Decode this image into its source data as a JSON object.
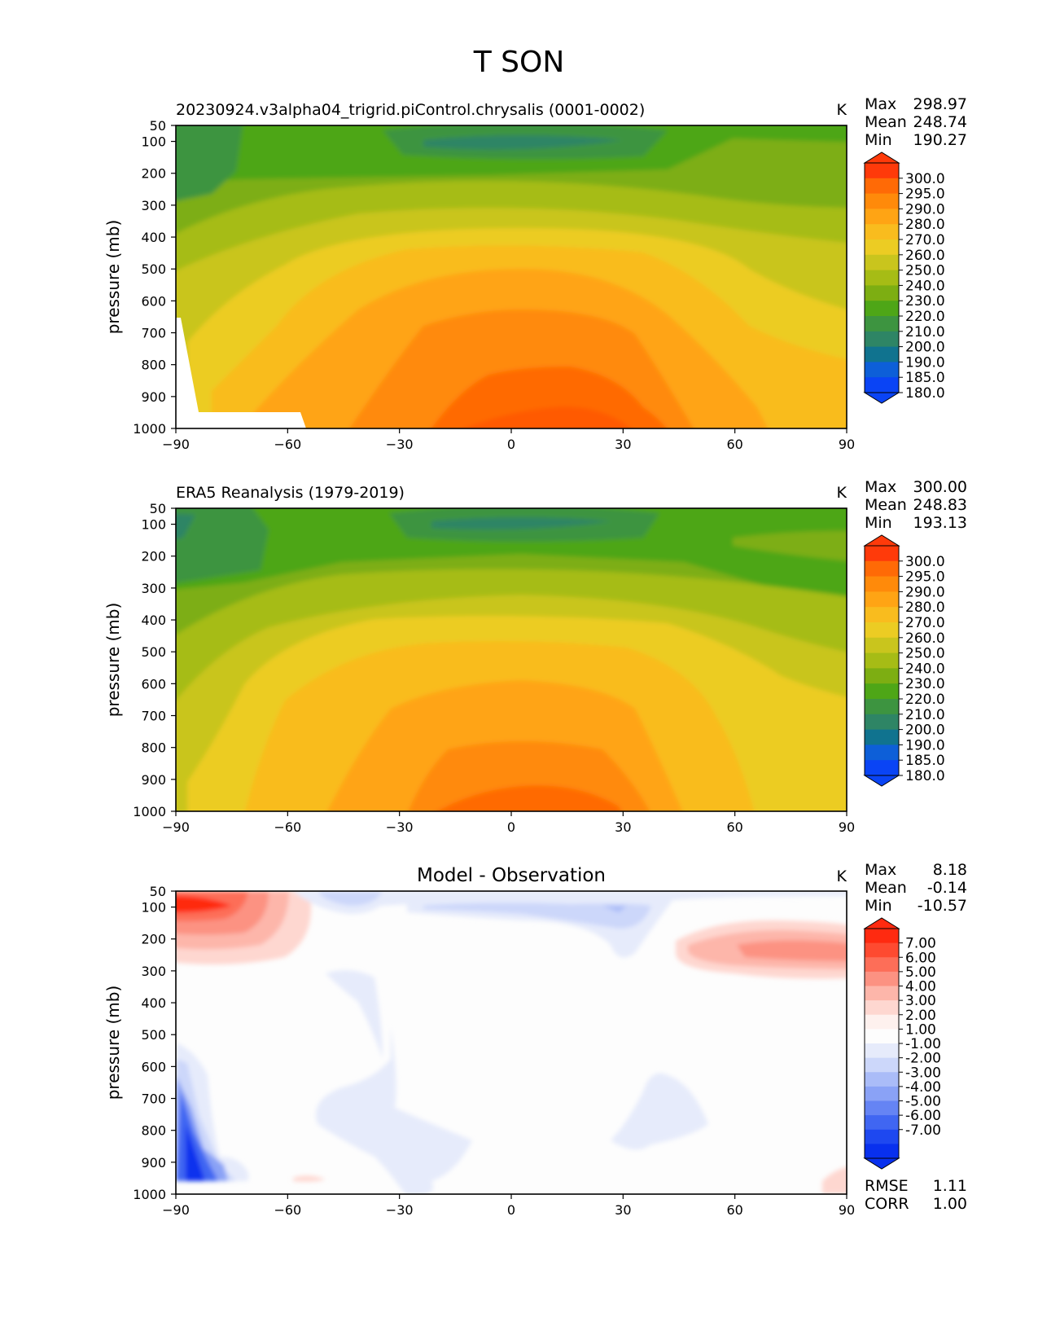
{
  "figure": {
    "title": "T SON"
  },
  "chart_data": [
    {
      "type": "heatmap",
      "title": "20230924.v3alpha04_trigrid.piControl.chrysalis (0001-0002)",
      "units": "K",
      "ylabel": "pressure (mb)",
      "xlabel": "",
      "x_ticks": [
        "−90",
        "−60",
        "−30",
        "0",
        "30",
        "60",
        "90"
      ],
      "y_ticks": [
        "50",
        "100",
        "200",
        "300",
        "400",
        "500",
        "600",
        "700",
        "800",
        "900",
        "1000"
      ],
      "xlim": [
        -90,
        90
      ],
      "ylim": [
        1000,
        50
      ],
      "stats": [
        {
          "label": "Max",
          "value": "298.97"
        },
        {
          "label": "Mean",
          "value": "248.74"
        },
        {
          "label": "Min",
          "value": "190.27"
        }
      ],
      "colorbar_levels": [
        "300.0",
        "295.0",
        "290.0",
        "280.0",
        "270.0",
        "260.0",
        "250.0",
        "240.0",
        "230.0",
        "220.0",
        "210.0",
        "200.0",
        "190.0",
        "185.0",
        "180.0"
      ],
      "colorbar_colors": [
        "#ff3a0a",
        "#ff6a06",
        "#ff8a0a",
        "#ffa414",
        "#f9bc1e",
        "#eccc23",
        "#c9c51d",
        "#a6bc15",
        "#7dae12",
        "#4ea617",
        "#3d9440",
        "#2e8565",
        "#10738f",
        "#0d5fd8",
        "#0a44f5"
      ],
      "surface_mask": true
    },
    {
      "type": "heatmap",
      "title": "ERA5 Reanalysis (1979-2019)",
      "units": "K",
      "ylabel": "pressure (mb)",
      "xlabel": "",
      "x_ticks": [
        "−90",
        "−60",
        "−30",
        "0",
        "30",
        "60",
        "90"
      ],
      "y_ticks": [
        "50",
        "100",
        "200",
        "300",
        "400",
        "500",
        "600",
        "700",
        "800",
        "900",
        "1000"
      ],
      "xlim": [
        -90,
        90
      ],
      "ylim": [
        1000,
        50
      ],
      "stats": [
        {
          "label": "Max",
          "value": "300.00"
        },
        {
          "label": "Mean",
          "value": "248.83"
        },
        {
          "label": "Min",
          "value": "193.13"
        }
      ],
      "colorbar_levels": [
        "300.0",
        "295.0",
        "290.0",
        "280.0",
        "270.0",
        "260.0",
        "250.0",
        "240.0",
        "230.0",
        "220.0",
        "210.0",
        "200.0",
        "190.0",
        "185.0",
        "180.0"
      ],
      "colorbar_colors": [
        "#ff3a0a",
        "#ff6a06",
        "#ff8a0a",
        "#ffa414",
        "#f9bc1e",
        "#eccc23",
        "#c9c51d",
        "#a6bc15",
        "#7dae12",
        "#4ea617",
        "#3d9440",
        "#2e8565",
        "#10738f",
        "#0d5fd8",
        "#0a44f5"
      ],
      "surface_mask": false
    },
    {
      "type": "heatmap",
      "title": "Model - Observation",
      "units": "K",
      "ylabel": "pressure (mb)",
      "xlabel": "",
      "x_ticks": [
        "−90",
        "−60",
        "−30",
        "0",
        "30",
        "60",
        "90"
      ],
      "y_ticks": [
        "50",
        "100",
        "200",
        "300",
        "400",
        "500",
        "600",
        "700",
        "800",
        "900",
        "1000"
      ],
      "xlim": [
        -90,
        90
      ],
      "ylim": [
        1000,
        50
      ],
      "stats": [
        {
          "label": "Max",
          "value": "8.18"
        },
        {
          "label": "Mean",
          "value": "-0.14"
        },
        {
          "label": "Min",
          "value": "-10.57"
        }
      ],
      "extra_stats": [
        {
          "label": "RMSE",
          "value": "1.11"
        },
        {
          "label": "CORR",
          "value": "1.00"
        }
      ],
      "colorbar_levels": [
        "7.00",
        "6.00",
        "5.00",
        "4.00",
        "3.00",
        "2.00",
        "1.00",
        "-1.00",
        "-2.00",
        "-3.00",
        "-4.00",
        "-5.00",
        "-6.00",
        "-7.00"
      ],
      "colorbar_colors": [
        "#ff2a10",
        "#fe4a30",
        "#fd6e58",
        "#fc9282",
        "#fdb6aa",
        "#fed7d0",
        "#fef1ee",
        "#fdfdfd",
        "#e6ebfb",
        "#ccd7fa",
        "#aabcf8",
        "#8aa2f6",
        "#6584f4",
        "#4066f2",
        "#1e48f0",
        "#0830ee"
      ]
    }
  ]
}
